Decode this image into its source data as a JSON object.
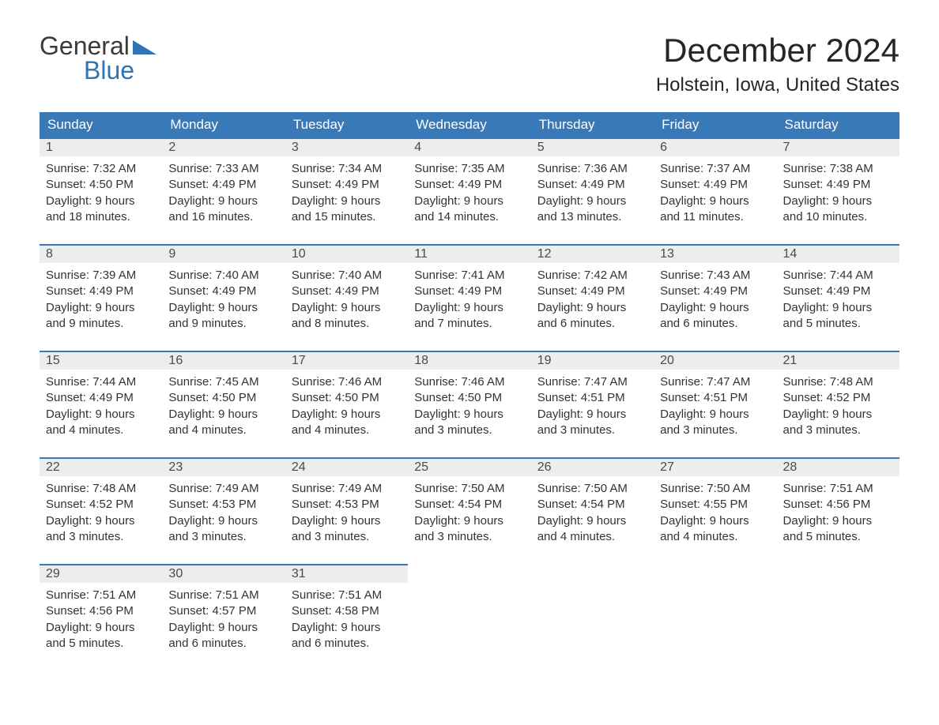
{
  "logo": {
    "text_grey": "General",
    "text_blue": "Blue"
  },
  "title": "December 2024",
  "location": "Holstein, Iowa, United States",
  "colors": {
    "header_bg": "#3a79b7",
    "header_text": "#ffffff",
    "daynum_bg": "#ededed",
    "daynum_border": "#3a79b7",
    "body_text": "#333333",
    "logo_blue": "#2f74b5",
    "logo_grey": "#3a3a3a"
  },
  "typography": {
    "title_fontsize": 42,
    "location_fontsize": 24,
    "header_fontsize": 17,
    "daynum_fontsize": 16,
    "cell_fontsize": 15
  },
  "layout": {
    "columns": 7,
    "rows": 5
  },
  "days_of_week": [
    "Sunday",
    "Monday",
    "Tuesday",
    "Wednesday",
    "Thursday",
    "Friday",
    "Saturday"
  ],
  "weeks": [
    [
      {
        "num": "1",
        "sunrise": "Sunrise: 7:32 AM",
        "sunset": "Sunset: 4:50 PM",
        "day1": "Daylight: 9 hours",
        "day2": "and 18 minutes."
      },
      {
        "num": "2",
        "sunrise": "Sunrise: 7:33 AM",
        "sunset": "Sunset: 4:49 PM",
        "day1": "Daylight: 9 hours",
        "day2": "and 16 minutes."
      },
      {
        "num": "3",
        "sunrise": "Sunrise: 7:34 AM",
        "sunset": "Sunset: 4:49 PM",
        "day1": "Daylight: 9 hours",
        "day2": "and 15 minutes."
      },
      {
        "num": "4",
        "sunrise": "Sunrise: 7:35 AM",
        "sunset": "Sunset: 4:49 PM",
        "day1": "Daylight: 9 hours",
        "day2": "and 14 minutes."
      },
      {
        "num": "5",
        "sunrise": "Sunrise: 7:36 AM",
        "sunset": "Sunset: 4:49 PM",
        "day1": "Daylight: 9 hours",
        "day2": "and 13 minutes."
      },
      {
        "num": "6",
        "sunrise": "Sunrise: 7:37 AM",
        "sunset": "Sunset: 4:49 PM",
        "day1": "Daylight: 9 hours",
        "day2": "and 11 minutes."
      },
      {
        "num": "7",
        "sunrise": "Sunrise: 7:38 AM",
        "sunset": "Sunset: 4:49 PM",
        "day1": "Daylight: 9 hours",
        "day2": "and 10 minutes."
      }
    ],
    [
      {
        "num": "8",
        "sunrise": "Sunrise: 7:39 AM",
        "sunset": "Sunset: 4:49 PM",
        "day1": "Daylight: 9 hours",
        "day2": "and 9 minutes."
      },
      {
        "num": "9",
        "sunrise": "Sunrise: 7:40 AM",
        "sunset": "Sunset: 4:49 PM",
        "day1": "Daylight: 9 hours",
        "day2": "and 9 minutes."
      },
      {
        "num": "10",
        "sunrise": "Sunrise: 7:40 AM",
        "sunset": "Sunset: 4:49 PM",
        "day1": "Daylight: 9 hours",
        "day2": "and 8 minutes."
      },
      {
        "num": "11",
        "sunrise": "Sunrise: 7:41 AM",
        "sunset": "Sunset: 4:49 PM",
        "day1": "Daylight: 9 hours",
        "day2": "and 7 minutes."
      },
      {
        "num": "12",
        "sunrise": "Sunrise: 7:42 AM",
        "sunset": "Sunset: 4:49 PM",
        "day1": "Daylight: 9 hours",
        "day2": "and 6 minutes."
      },
      {
        "num": "13",
        "sunrise": "Sunrise: 7:43 AM",
        "sunset": "Sunset: 4:49 PM",
        "day1": "Daylight: 9 hours",
        "day2": "and 6 minutes."
      },
      {
        "num": "14",
        "sunrise": "Sunrise: 7:44 AM",
        "sunset": "Sunset: 4:49 PM",
        "day1": "Daylight: 9 hours",
        "day2": "and 5 minutes."
      }
    ],
    [
      {
        "num": "15",
        "sunrise": "Sunrise: 7:44 AM",
        "sunset": "Sunset: 4:49 PM",
        "day1": "Daylight: 9 hours",
        "day2": "and 4 minutes."
      },
      {
        "num": "16",
        "sunrise": "Sunrise: 7:45 AM",
        "sunset": "Sunset: 4:50 PM",
        "day1": "Daylight: 9 hours",
        "day2": "and 4 minutes."
      },
      {
        "num": "17",
        "sunrise": "Sunrise: 7:46 AM",
        "sunset": "Sunset: 4:50 PM",
        "day1": "Daylight: 9 hours",
        "day2": "and 4 minutes."
      },
      {
        "num": "18",
        "sunrise": "Sunrise: 7:46 AM",
        "sunset": "Sunset: 4:50 PM",
        "day1": "Daylight: 9 hours",
        "day2": "and 3 minutes."
      },
      {
        "num": "19",
        "sunrise": "Sunrise: 7:47 AM",
        "sunset": "Sunset: 4:51 PM",
        "day1": "Daylight: 9 hours",
        "day2": "and 3 minutes."
      },
      {
        "num": "20",
        "sunrise": "Sunrise: 7:47 AM",
        "sunset": "Sunset: 4:51 PM",
        "day1": "Daylight: 9 hours",
        "day2": "and 3 minutes."
      },
      {
        "num": "21",
        "sunrise": "Sunrise: 7:48 AM",
        "sunset": "Sunset: 4:52 PM",
        "day1": "Daylight: 9 hours",
        "day2": "and 3 minutes."
      }
    ],
    [
      {
        "num": "22",
        "sunrise": "Sunrise: 7:48 AM",
        "sunset": "Sunset: 4:52 PM",
        "day1": "Daylight: 9 hours",
        "day2": "and 3 minutes."
      },
      {
        "num": "23",
        "sunrise": "Sunrise: 7:49 AM",
        "sunset": "Sunset: 4:53 PM",
        "day1": "Daylight: 9 hours",
        "day2": "and 3 minutes."
      },
      {
        "num": "24",
        "sunrise": "Sunrise: 7:49 AM",
        "sunset": "Sunset: 4:53 PM",
        "day1": "Daylight: 9 hours",
        "day2": "and 3 minutes."
      },
      {
        "num": "25",
        "sunrise": "Sunrise: 7:50 AM",
        "sunset": "Sunset: 4:54 PM",
        "day1": "Daylight: 9 hours",
        "day2": "and 3 minutes."
      },
      {
        "num": "26",
        "sunrise": "Sunrise: 7:50 AM",
        "sunset": "Sunset: 4:54 PM",
        "day1": "Daylight: 9 hours",
        "day2": "and 4 minutes."
      },
      {
        "num": "27",
        "sunrise": "Sunrise: 7:50 AM",
        "sunset": "Sunset: 4:55 PM",
        "day1": "Daylight: 9 hours",
        "day2": "and 4 minutes."
      },
      {
        "num": "28",
        "sunrise": "Sunrise: 7:51 AM",
        "sunset": "Sunset: 4:56 PM",
        "day1": "Daylight: 9 hours",
        "day2": "and 5 minutes."
      }
    ],
    [
      {
        "num": "29",
        "sunrise": "Sunrise: 7:51 AM",
        "sunset": "Sunset: 4:56 PM",
        "day1": "Daylight: 9 hours",
        "day2": "and 5 minutes."
      },
      {
        "num": "30",
        "sunrise": "Sunrise: 7:51 AM",
        "sunset": "Sunset: 4:57 PM",
        "day1": "Daylight: 9 hours",
        "day2": "and 6 minutes."
      },
      {
        "num": "31",
        "sunrise": "Sunrise: 7:51 AM",
        "sunset": "Sunset: 4:58 PM",
        "day1": "Daylight: 9 hours",
        "day2": "and 6 minutes."
      },
      null,
      null,
      null,
      null
    ]
  ]
}
